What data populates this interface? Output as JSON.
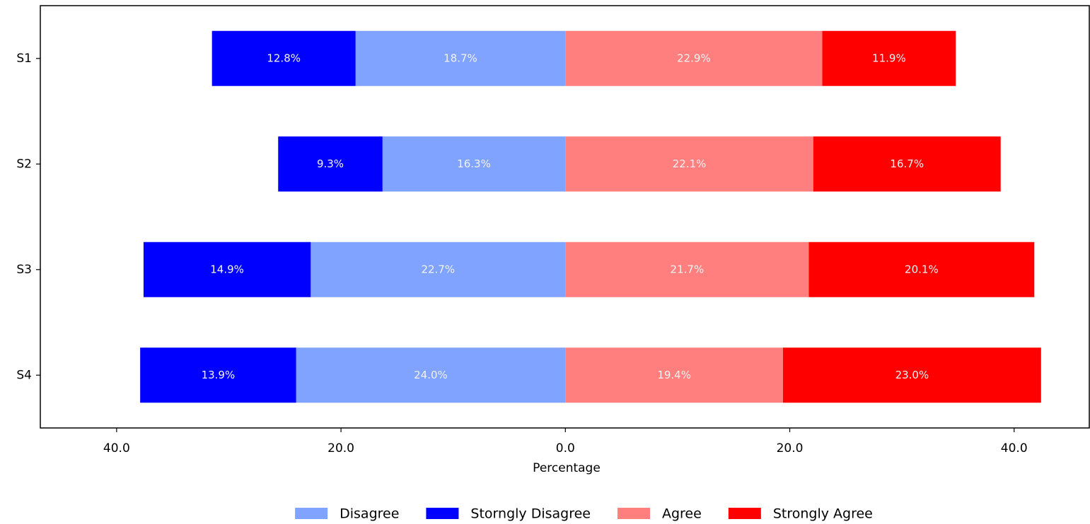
{
  "chart_data": {
    "type": "diverging_bar",
    "x_label": "Percentage",
    "categories": [
      "S1",
      "S2",
      "S3",
      "S4"
    ],
    "series": [
      {
        "name": "Disagree",
        "color": "#7fa3ff",
        "values": [
          18.7,
          16.3,
          22.7,
          24.0
        ],
        "value_labels": [
          "18.7%",
          "16.3%",
          "22.7%",
          "24.0%"
        ]
      },
      {
        "name": "Storngly Disagree",
        "color": "#0000ff",
        "values": [
          12.8,
          9.3,
          14.9,
          13.9
        ],
        "value_labels": [
          "12.8%",
          "9.3%",
          "14.9%",
          "13.9%"
        ]
      },
      {
        "name": "Agree",
        "color": "#ff7f7f",
        "values": [
          22.9,
          22.1,
          21.7,
          19.4
        ],
        "value_labels": [
          "22.9%",
          "22.1%",
          "21.7%",
          "19.4%"
        ]
      },
      {
        "name": "Strongly Agree",
        "color": "#ff0000",
        "values": [
          11.9,
          16.7,
          20.1,
          23.0
        ],
        "value_labels": [
          "11.9%",
          "16.7%",
          "20.1%",
          "23.0%"
        ]
      }
    ],
    "xlim": [
      -46.8,
      46.7
    ],
    "xticks": [
      {
        "value": -40,
        "label": "40.0"
      },
      {
        "value": -20,
        "label": "20.0"
      },
      {
        "value": 0,
        "label": "0.0"
      },
      {
        "value": 20,
        "label": "20.0"
      },
      {
        "value": 40,
        "label": "40.0"
      }
    ],
    "grid": false,
    "legend": "bottom"
  }
}
